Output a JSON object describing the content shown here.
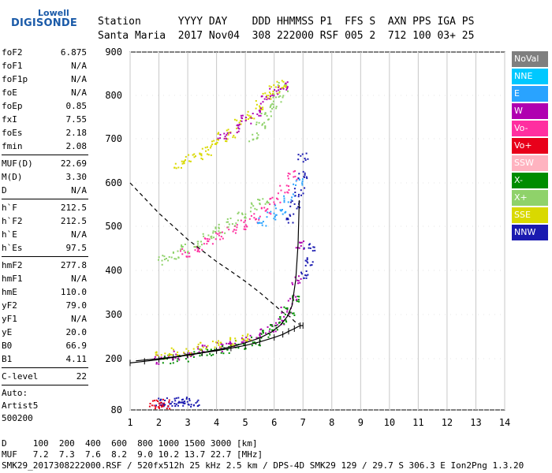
{
  "logo": {
    "line1": "Lowell",
    "line2": "DIGISONDE"
  },
  "header": {
    "labels": "Station      YYYY DAY    DDD HHMMSS P1  FFS S  AXN PPS IGA PS",
    "values": "Santa Maria  2017 Nov04  308 222000 RSF 005 2  712 100 03+ 25"
  },
  "params": [
    [
      {
        "k": "foF2",
        "v": "6.875"
      },
      {
        "k": "foF1",
        "v": "N/A"
      },
      {
        "k": "foF1p",
        "v": "N/A"
      },
      {
        "k": "foE",
        "v": "N/A"
      },
      {
        "k": "foEp",
        "v": "0.85"
      },
      {
        "k": "fxI",
        "v": "7.55"
      },
      {
        "k": "foEs",
        "v": "2.18"
      },
      {
        "k": "fmin",
        "v": "2.08"
      }
    ],
    [
      {
        "k": "MUF(D)",
        "v": "22.69"
      },
      {
        "k": "M(D)",
        "v": "3.30"
      },
      {
        "k": "D",
        "v": "N/A"
      }
    ],
    [
      {
        "k": "h`F",
        "v": "212.5"
      },
      {
        "k": "h`F2",
        "v": "212.5"
      },
      {
        "k": "h`E",
        "v": "N/A"
      },
      {
        "k": "h`Es",
        "v": "97.5"
      }
    ],
    [
      {
        "k": "hmF2",
        "v": "277.8"
      },
      {
        "k": "hmF1",
        "v": "N/A"
      },
      {
        "k": "hmE",
        "v": "110.0"
      },
      {
        "k": "yF2",
        "v": "79.0"
      },
      {
        "k": "yF1",
        "v": "N/A"
      },
      {
        "k": "yE",
        "v": "20.0"
      },
      {
        "k": "B0",
        "v": "66.9"
      },
      {
        "k": "B1",
        "v": "4.11"
      }
    ],
    [
      {
        "k": "C-level",
        "v": "22"
      }
    ]
  ],
  "autoscale": {
    "line1": "Auto:",
    "line2": "Artist5",
    "line3": "500200"
  },
  "legend": [
    {
      "label": "NoVal",
      "color": "#7f7f7f"
    },
    {
      "label": "NNE",
      "color": "#00c8ff"
    },
    {
      "label": "E",
      "color": "#29a3ff"
    },
    {
      "label": "W",
      "color": "#b000b0"
    },
    {
      "label": "Vo-",
      "color": "#ff2fa0"
    },
    {
      "label": "Vo+",
      "color": "#e8001a"
    },
    {
      "label": "SSW",
      "color": "#ffb3c0"
    },
    {
      "label": "X-",
      "color": "#008c00"
    },
    {
      "label": "X+",
      "color": "#8fd26a"
    },
    {
      "label": "SSE",
      "color": "#d9d900"
    },
    {
      "label": "NNW",
      "color": "#1a1ab0"
    }
  ],
  "footer": {
    "row1": "D     100  200  400  600  800 1000 1500 3000 [km]",
    "row2": "MUF   7.2  7.3  7.6  8.2  9.0 10.2 13.7 22.7 [MHz]",
    "row3": "SMK29_2017308222000.RSF / 520fx512h 25 kHz 2.5 km / DPS-4D SMK29 129 / 29.7 S 306.3 E Ion2Png 1.3.20"
  },
  "chart_data": {
    "type": "scatter",
    "x_ticks": [
      "1",
      "2",
      "3",
      "4",
      "5",
      "6",
      "7",
      "8",
      "9",
      "10",
      "11",
      "12",
      "13",
      "14"
    ],
    "y_ticks": [
      "80",
      "200",
      "300",
      "400",
      "500",
      "600",
      "700",
      "800",
      "900"
    ],
    "xlim": [
      1,
      14
    ],
    "ylim": [
      80,
      900
    ],
    "grid": true,
    "legend_placement": "right",
    "traces": [
      {
        "mode": "X+",
        "x": [
          5.3,
          5.5,
          5.7,
          5.9,
          6.1,
          6.3
        ],
        "y": [
          705,
          735,
          755,
          775,
          795,
          820
        ]
      },
      {
        "mode": "SSE",
        "x": [
          2.7,
          3.0,
          3.3,
          3.6,
          3.9,
          4.2,
          4.5,
          4.8,
          5.1,
          5.4,
          5.7,
          6.0,
          6.2
        ],
        "y": [
          645,
          655,
          665,
          675,
          690,
          705,
          715,
          735,
          755,
          780,
          800,
          815,
          825
        ]
      },
      {
        "mode": "W",
        "x": [
          4.2,
          4.6,
          5.0,
          5.4,
          5.7,
          6.0,
          6.3
        ],
        "y": [
          705,
          725,
          745,
          765,
          790,
          810,
          825
        ]
      },
      {
        "mode": "Vo-",
        "x": [
          2.9,
          3.3,
          3.7,
          4.1,
          4.5,
          4.9,
          5.3,
          5.7,
          6.0,
          6.3,
          6.6
        ],
        "y": [
          440,
          450,
          465,
          480,
          495,
          505,
          520,
          540,
          560,
          585,
          620
        ]
      },
      {
        "mode": "X+",
        "x": [
          2.1,
          2.5,
          2.9,
          3.3,
          3.7,
          4.1,
          4.5,
          4.9,
          5.3,
          5.6
        ],
        "y": [
          425,
          435,
          450,
          465,
          480,
          495,
          510,
          525,
          545,
          560
        ]
      },
      {
        "mode": "E",
        "x": [
          5.6,
          5.9,
          6.2,
          6.5,
          6.8
        ],
        "y": [
          510,
          525,
          540,
          565,
          600
        ]
      },
      {
        "mode": "NNW",
        "x": [
          6.5,
          6.7,
          6.85,
          6.95,
          7.0
        ],
        "y": [
          520,
          550,
          580,
          620,
          660
        ]
      },
      {
        "mode": "W",
        "x": [
          2.0,
          2.5,
          3.0,
          3.5,
          4.0,
          4.5,
          5.0,
          5.5,
          5.9,
          6.2,
          6.4,
          6.6,
          6.75,
          6.85
        ],
        "y": [
          200,
          208,
          215,
          222,
          228,
          236,
          246,
          258,
          272,
          290,
          310,
          335,
          380,
          460
        ]
      },
      {
        "mode": "X-",
        "x": [
          2.3,
          2.8,
          3.3,
          3.8,
          4.3,
          4.8,
          5.3,
          5.7,
          6.0,
          6.3,
          6.5,
          6.7
        ],
        "y": [
          200,
          206,
          212,
          218,
          224,
          232,
          242,
          255,
          270,
          290,
          310,
          335
        ]
      },
      {
        "mode": "SSE",
        "x": [
          2.0,
          2.5,
          3.0,
          3.5,
          4.0,
          4.5,
          5.0
        ],
        "y": [
          210,
          215,
          220,
          228,
          235,
          242,
          250
        ]
      },
      {
        "mode": "NNW",
        "x": [
          2.0,
          2.2,
          2.4,
          2.6,
          2.8,
          3.0,
          3.2
        ],
        "y": [
          100,
          100,
          100,
          100,
          100,
          100,
          100
        ]
      },
      {
        "mode": "Vo+",
        "x": [
          1.8,
          2.0,
          2.2
        ],
        "y": [
          95,
          95,
          95
        ]
      },
      {
        "mode": "NNW",
        "x": [
          7.1,
          7.15,
          7.2
        ],
        "y": [
          390,
          420,
          455
        ]
      }
    ],
    "trace_o": {
      "x": [
        1.2,
        2.0,
        2.5,
        3.0,
        3.5,
        4.0,
        4.5,
        5.0,
        5.5,
        5.9,
        6.2,
        6.45,
        6.62,
        6.75,
        6.83,
        6.87
      ],
      "y": [
        195,
        200,
        204,
        209,
        214,
        220,
        227,
        236,
        247,
        260,
        275,
        295,
        320,
        380,
        460,
        560
      ]
    },
    "trace_x": {
      "x": [
        1.0,
        1.5,
        2.0,
        2.5,
        3.0,
        3.5,
        4.0,
        4.5,
        5.0,
        5.5,
        6.0,
        6.3,
        6.5,
        6.7,
        6.9,
        7.0
      ],
      "y": [
        190,
        194,
        198,
        203,
        208,
        213,
        218,
        224,
        230,
        238,
        248,
        255,
        262,
        268,
        275,
        275
      ]
    },
    "profile": {
      "x": [
        1.0,
        1.5,
        2.0,
        2.5,
        3.0,
        3.5,
        4.0,
        4.5,
        5.0,
        5.5,
        6.0,
        6.3,
        6.55,
        6.7,
        6.8,
        6.875
      ],
      "y": [
        600,
        565,
        530,
        500,
        470,
        445,
        420,
        398,
        375,
        350,
        322,
        305,
        295,
        285,
        280,
        278
      ]
    }
  }
}
